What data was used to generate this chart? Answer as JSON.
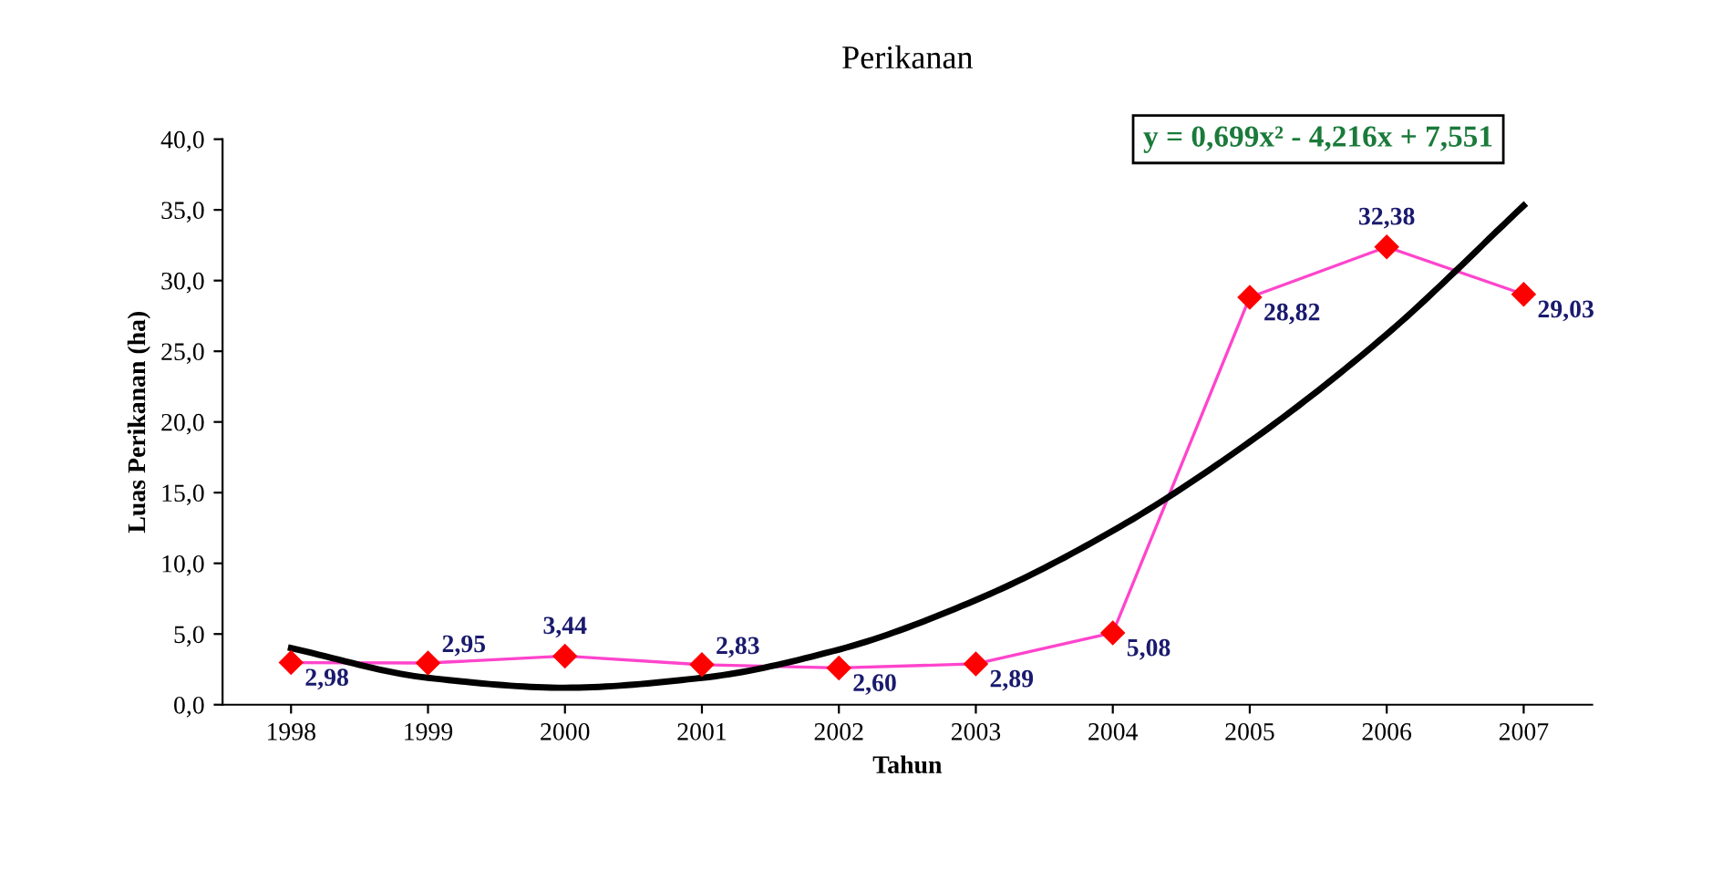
{
  "chart_data": {
    "type": "line",
    "title": "Perikanan",
    "xlabel": "Tahun",
    "ylabel": "Luas Perikanan (ha)",
    "categories": [
      "1998",
      "1999",
      "2000",
      "2001",
      "2002",
      "2003",
      "2004",
      "2005",
      "2006",
      "2007"
    ],
    "series": [
      {
        "color": "#ff44cc",
        "colors": [
          "#ff0000",
          "#ff0000",
          "#ff0000",
          "#ff0000",
          "#ff0000",
          "#ff0000",
          "#ff0000",
          "#ff0000",
          "#ff0000",
          "#ff0000"
        ],
        "marker": "diamond",
        "values": [
          2.98,
          2.95,
          3.44,
          2.83,
          2.6,
          2.89,
          5.08,
          28.82,
          32.38,
          29.03
        ],
        "value_labels": [
          "2,98",
          "2,95",
          "3,44",
          "2,83",
          "2,60",
          "2,89",
          "5,08",
          "28,82",
          "32,38",
          "29,03"
        ]
      },
      {
        "type": "line",
        "color": "#000000",
        "marker": "none",
        "values": [
          4.0,
          1.9,
          1.2,
          1.9,
          3.9,
          7.4,
          12.3,
          18.6,
          26.2,
          35.3
        ]
      }
    ],
    "ylim": [
      0,
      40
    ],
    "yticks": [
      {
        "value": 0,
        "label": "0,0"
      },
      {
        "value": 5,
        "label": "5,0"
      },
      {
        "value": 10,
        "label": "10,0"
      },
      {
        "value": 15,
        "label": "15,0"
      },
      {
        "value": 20,
        "label": "20,0"
      },
      {
        "value": 25,
        "label": "25,0"
      },
      {
        "value": 30,
        "label": "30,0"
      },
      {
        "value": 35,
        "label": "35,0"
      },
      {
        "value": 40,
        "label": "40,0"
      }
    ],
    "grid": false,
    "legend": false,
    "annotations": [
      "y = 0,699x² - 4,216x + 7,551"
    ]
  }
}
